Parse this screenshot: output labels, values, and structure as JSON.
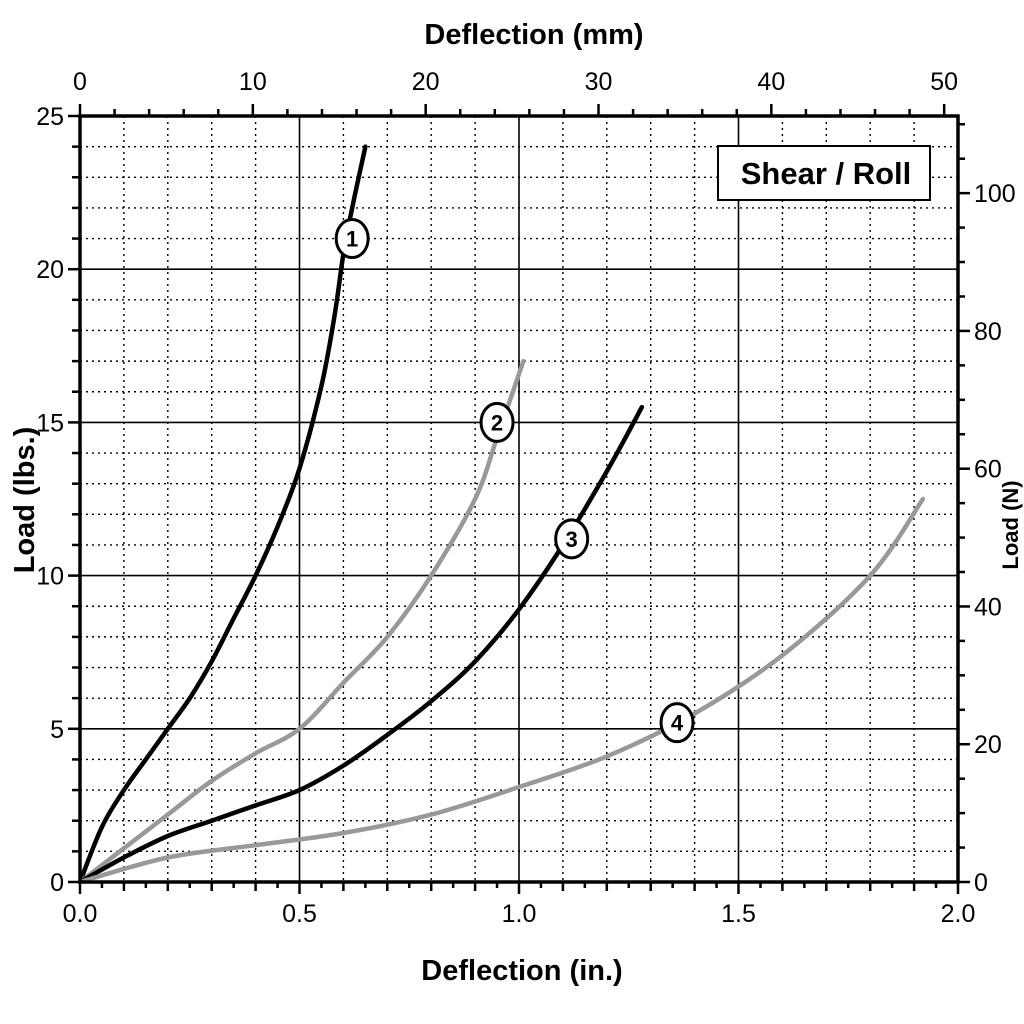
{
  "chart_data": {
    "type": "line",
    "title": "Shear / Roll",
    "xlabel": "Deflection (in.)",
    "x2label": "Deflection (mm)",
    "ylabel": "Load (lbs.)",
    "y2label": "Load (N)",
    "xlim": [
      0,
      2.0
    ],
    "ylim": [
      0,
      25
    ],
    "x2lim": [
      0,
      50.8
    ],
    "y2lim": [
      0,
      111.2
    ],
    "x_ticks": [
      "0.0",
      "0.5",
      "1.0",
      "1.5",
      "2.0"
    ],
    "y_ticks": [
      "0",
      "5",
      "10",
      "15",
      "20",
      "25"
    ],
    "x2_ticks": [
      "0",
      "10",
      "20",
      "30",
      "40",
      "50"
    ],
    "y2_ticks": [
      "0",
      "20",
      "40",
      "60",
      "80",
      "100"
    ],
    "grid": true,
    "series": [
      {
        "name": "1",
        "color": "#000000",
        "x": [
          0.0,
          0.05,
          0.1,
          0.15,
          0.2,
          0.25,
          0.3,
          0.35,
          0.4,
          0.45,
          0.5,
          0.55,
          0.58,
          0.6,
          0.62,
          0.65
        ],
        "y": [
          0,
          1.8,
          3.0,
          4.0,
          5.0,
          6.0,
          7.2,
          8.6,
          10.0,
          11.6,
          13.5,
          16.2,
          18.5,
          20.5,
          22.0,
          24.0
        ]
      },
      {
        "name": "2",
        "color": "#999999",
        "x": [
          0.0,
          0.1,
          0.2,
          0.3,
          0.4,
          0.5,
          0.6,
          0.7,
          0.8,
          0.9,
          0.95,
          1.01
        ],
        "y": [
          0,
          1.1,
          2.2,
          3.3,
          4.2,
          5.0,
          6.5,
          8.0,
          10.0,
          12.5,
          14.5,
          17.0
        ]
      },
      {
        "name": "3",
        "color": "#000000",
        "x": [
          0.0,
          0.1,
          0.2,
          0.3,
          0.4,
          0.5,
          0.6,
          0.7,
          0.8,
          0.9,
          1.0,
          1.1,
          1.2,
          1.28
        ],
        "y": [
          0,
          0.8,
          1.5,
          2.0,
          2.5,
          3.0,
          3.8,
          4.8,
          5.9,
          7.2,
          8.9,
          11.0,
          13.4,
          15.5
        ]
      },
      {
        "name": "4",
        "color": "#999999",
        "x": [
          0.0,
          0.2,
          0.4,
          0.6,
          0.8,
          1.0,
          1.2,
          1.4,
          1.6,
          1.8,
          1.92
        ],
        "y": [
          0,
          0.8,
          1.2,
          1.6,
          2.2,
          3.1,
          4.1,
          5.5,
          7.4,
          10.0,
          12.5
        ]
      }
    ],
    "annotations": [
      {
        "label": "1",
        "x": 0.62,
        "y": 21.0
      },
      {
        "label": "2",
        "x": 0.95,
        "y": 15.0
      },
      {
        "label": "3",
        "x": 1.12,
        "y": 11.2
      },
      {
        "label": "4",
        "x": 1.36,
        "y": 5.2
      }
    ]
  }
}
